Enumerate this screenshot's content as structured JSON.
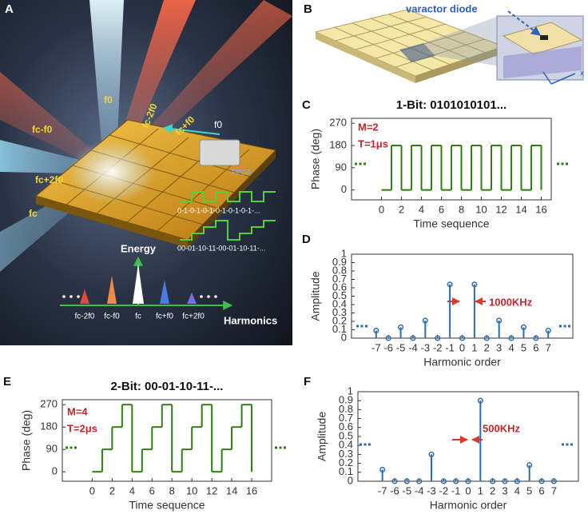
{
  "panel_labels": [
    "A",
    "B",
    "C",
    "D",
    "E",
    "F"
  ],
  "illustration_a": {
    "beams": [
      "f0",
      "fc-2f0",
      "fc-f0",
      "fc+f0",
      "fc+2f0",
      "fc"
    ],
    "control_frequency": "f0",
    "controller": "FPGA",
    "codes": [
      "0-1-0-1-0-1-0-1-0-1-0-1-...",
      "00-01-10-11-00-01-10-11-..."
    ],
    "energy_axis": "Energy",
    "harmonics_axis": "Harmonics",
    "spectrum_labels": [
      "fc-2f0",
      "fc-f0",
      "fc",
      "fc+f0",
      "fc+2f0"
    ]
  },
  "illustration_b": {
    "callout": "varactor diode",
    "axis": "x"
  },
  "chart_data": [
    {
      "type": "line",
      "drawstyle": "steps-post",
      "title": "1-Bit: 0101010101...",
      "x_label": "Time sequence",
      "y_label": "Phase (deg)",
      "annotations": [
        "M=2",
        "T=1μs"
      ],
      "x": [
        0,
        1,
        2,
        3,
        4,
        5,
        6,
        7,
        8,
        9,
        10,
        11,
        12,
        13,
        14,
        15,
        16
      ],
      "series": [
        {
          "color": "#2f7d13",
          "values": [
            0,
            180,
            0,
            180,
            0,
            180,
            0,
            180,
            0,
            180,
            0,
            180,
            0,
            180,
            0,
            180,
            0
          ]
        }
      ],
      "xlim": [
        -3,
        17
      ],
      "ylim": [
        -40,
        290
      ],
      "xticks": [
        0,
        2,
        4,
        6,
        8,
        10,
        12,
        14,
        16
      ],
      "yticks": [
        0,
        90,
        180,
        270
      ]
    },
    {
      "type": "stem",
      "x_label": "Harmonic order",
      "y_label": "Amplitude",
      "annotations": [
        "1000KHz"
      ],
      "x": [
        -7,
        -6,
        -5,
        -4,
        -3,
        -2,
        -1,
        0,
        1,
        2,
        3,
        4,
        5,
        6,
        7
      ],
      "series": [
        {
          "color": "#2b6cb4",
          "values": [
            0.09,
            0,
            0.13,
            0,
            0.21,
            0,
            0.64,
            0,
            0.64,
            0,
            0.21,
            0,
            0.13,
            0,
            0.09
          ]
        }
      ],
      "xlim": [
        -9,
        9
      ],
      "ylim": [
        0,
        1
      ],
      "xticks": [
        -7,
        -6,
        -5,
        -4,
        -3,
        -2,
        -1,
        0,
        1,
        2,
        3,
        4,
        5,
        6,
        7
      ],
      "yticks": [
        0,
        0.1,
        0.2,
        0.3,
        0.4,
        0.5,
        0.6,
        0.7,
        0.8,
        0.9,
        1
      ]
    },
    {
      "type": "line",
      "drawstyle": "steps-post",
      "title": "2-Bit: 00-01-10-11-...",
      "x_label": "Time sequence",
      "y_label": "Phase (deg)",
      "annotations": [
        "M=4",
        "T=2μs"
      ],
      "x": [
        0,
        1,
        2,
        3,
        4,
        5,
        6,
        7,
        8,
        9,
        10,
        11,
        12,
        13,
        14,
        15,
        16
      ],
      "series": [
        {
          "color": "#2f7d13",
          "values": [
            0,
            90,
            180,
            270,
            0,
            90,
            180,
            270,
            0,
            90,
            180,
            270,
            0,
            90,
            180,
            270,
            0
          ]
        }
      ],
      "xlim": [
        -3,
        18
      ],
      "ylim": [
        -38,
        290
      ],
      "xticks": [
        0,
        2,
        4,
        6,
        8,
        10,
        12,
        14,
        16
      ],
      "yticks": [
        0,
        90,
        180,
        270
      ]
    },
    {
      "type": "stem",
      "x_label": "Harmonic order",
      "y_label": "Amplitude",
      "annotations": [
        "500KHz"
      ],
      "x": [
        -7,
        -6,
        -5,
        -4,
        -3,
        -2,
        -1,
        0,
        1,
        2,
        3,
        4,
        5,
        6,
        7
      ],
      "series": [
        {
          "color": "#2b6cb4",
          "values": [
            0.13,
            0,
            0,
            0,
            0.3,
            0,
            0,
            0,
            0.9,
            0,
            0,
            0,
            0.18,
            0,
            0
          ]
        }
      ],
      "xlim": [
        -9,
        9
      ],
      "ylim": [
        0,
        1
      ],
      "xticks": [
        -7,
        -6,
        -5,
        -4,
        -3,
        -2,
        -1,
        0,
        1,
        2,
        3,
        4,
        5,
        6,
        7
      ],
      "yticks": [
        0,
        0.1,
        0.2,
        0.3,
        0.4,
        0.5,
        0.6,
        0.7,
        0.8,
        0.9,
        1
      ]
    }
  ]
}
